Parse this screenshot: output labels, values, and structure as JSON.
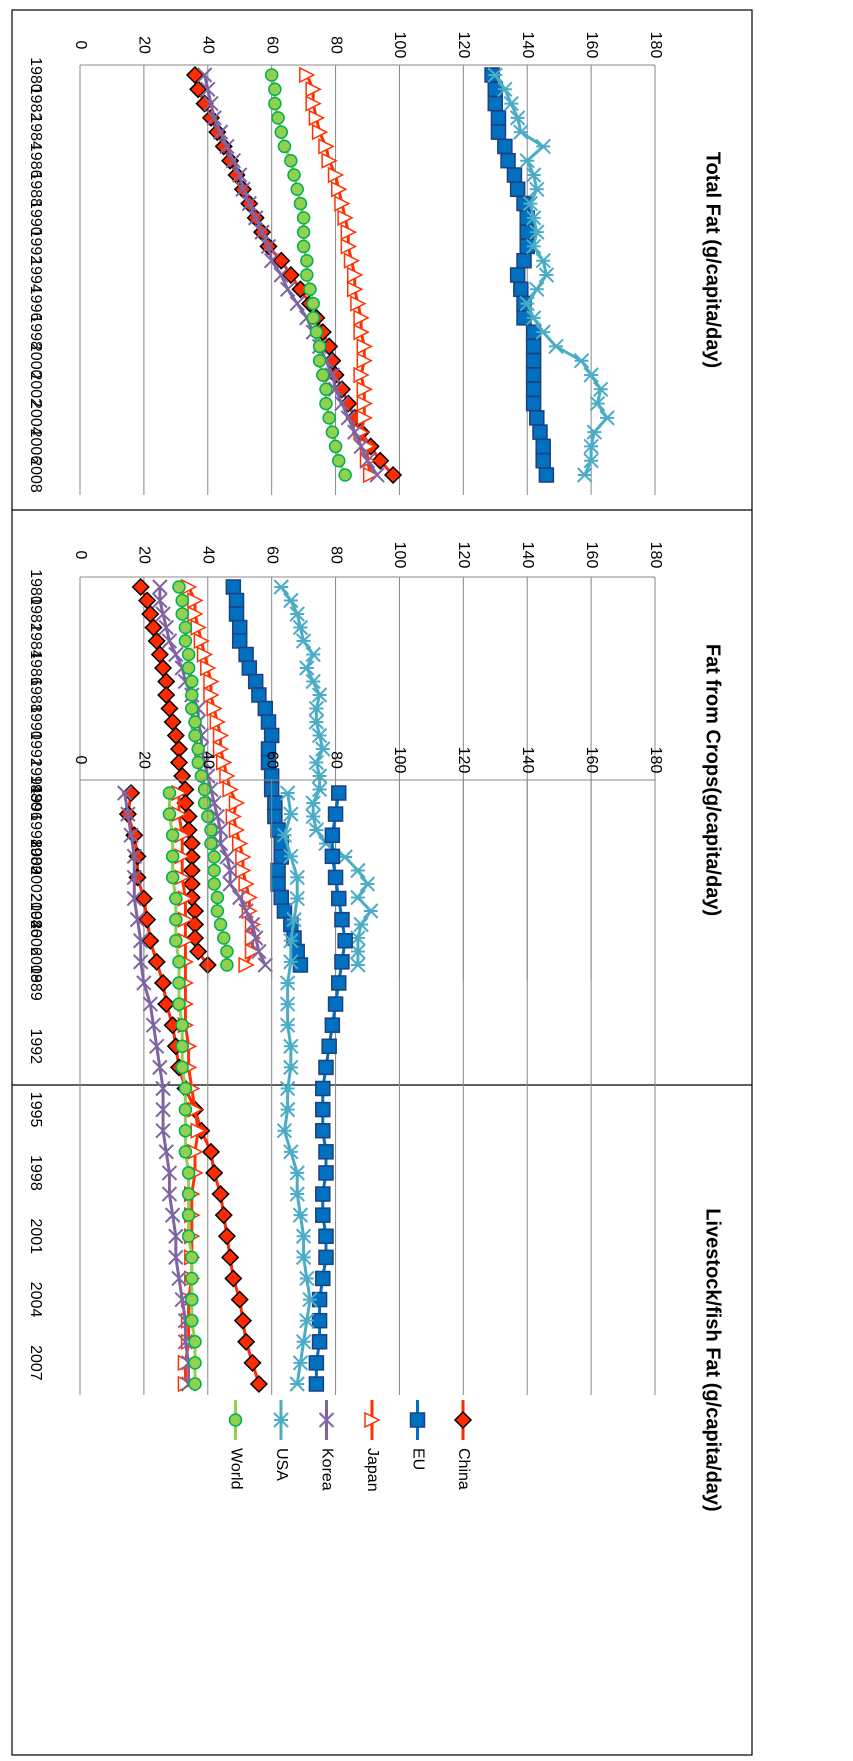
{
  "chart_data": [
    {
      "type": "line",
      "title": "Total Fat (g/capita/day)",
      "categories": [
        "1980",
        null,
        "1982",
        null,
        "1984",
        null,
        "1986",
        null,
        "1988",
        null,
        "1990",
        null,
        "1992",
        null,
        "1994",
        null,
        "1996",
        null,
        "1998",
        null,
        "2000",
        null,
        "2002",
        null,
        "2004",
        null,
        "2006",
        null,
        "2008"
      ],
      "ylim": [
        0,
        180
      ],
      "yticks": [
        0,
        20,
        40,
        60,
        80,
        100,
        120,
        140,
        160,
        180
      ],
      "grid": true,
      "legend": false,
      "series": [
        {
          "color": "#ff2a00",
          "edge_color": "#000000",
          "marker": "diamond",
          "values": [
            36,
            37,
            39,
            41,
            43,
            45,
            47,
            49,
            51,
            53,
            55,
            57,
            59,
            63,
            66,
            69,
            72,
            74,
            76,
            78,
            79,
            80,
            82,
            84,
            86,
            88,
            91,
            94,
            98
          ]
        },
        {
          "color": "#0070c0",
          "edge_color": "#1f3f7f",
          "marker": "square",
          "values": [
            129,
            130,
            130,
            131,
            131,
            133,
            134,
            136,
            137,
            139,
            140,
            140,
            140,
            139,
            137,
            138,
            139,
            139,
            142,
            142,
            142,
            142,
            142,
            142,
            143,
            144,
            145,
            145,
            146
          ]
        },
        {
          "color": "#ff3300",
          "edge_color": "#ff3300",
          "marker": "triangle",
          "values": [
            71,
            73,
            73,
            74,
            75,
            77,
            78,
            80,
            81,
            82,
            83,
            84,
            84,
            85,
            86,
            86,
            87,
            88,
            88,
            89,
            89,
            88,
            89,
            89,
            89,
            88,
            90,
            90,
            91
          ]
        },
        {
          "color": "#8064a2",
          "edge_color": "#8064a2",
          "marker": "x",
          "values": [
            39,
            40,
            41,
            42,
            44,
            46,
            48,
            50,
            51,
            53,
            55,
            57,
            59,
            60,
            63,
            65,
            68,
            71,
            73,
            75,
            77,
            79,
            80,
            82,
            84,
            86,
            88,
            90,
            93
          ]
        },
        {
          "color": "#4bacc6",
          "edge_color": "#4bacc6",
          "marker": "star",
          "values": [
            130,
            133,
            135,
            137,
            138,
            145,
            140,
            142,
            143,
            141,
            142,
            143,
            142,
            145,
            146,
            143,
            140,
            142,
            145,
            149,
            157,
            160,
            163,
            162,
            165,
            161,
            160,
            160,
            158
          ]
        },
        {
          "color": "#92d050",
          "edge_color": "#00b050",
          "marker": "circle",
          "values": [
            60,
            61,
            61,
            62,
            63,
            64,
            66,
            67,
            68,
            69,
            70,
            70,
            70,
            71,
            71,
            72,
            73,
            73,
            74,
            75,
            75,
            76,
            77,
            77,
            78,
            79,
            80,
            81,
            83
          ]
        }
      ]
    },
    {
      "type": "line",
      "title": "Fat from Crops(g/capita/day)",
      "categories": [
        "1980",
        null,
        "1982",
        null,
        "1984",
        null,
        "1986",
        null,
        "1988",
        null,
        "1990",
        null,
        "1992",
        null,
        "1994",
        null,
        "1996",
        null,
        "1998",
        null,
        "2000",
        null,
        "2002",
        null,
        "2004",
        null,
        "2006",
        null,
        "2008"
      ],
      "ylim": [
        0,
        180
      ],
      "yticks": [
        0,
        20,
        40,
        60,
        80,
        100,
        120,
        140,
        160,
        180
      ],
      "grid": true,
      "legend": false,
      "series": [
        {
          "color": "#ff2a00",
          "edge_color": "#000000",
          "marker": "diamond",
          "values": [
            19,
            21,
            22,
            23,
            24,
            25,
            26,
            27,
            27,
            28,
            29,
            30,
            31,
            31,
            32,
            33,
            33,
            34,
            34,
            35,
            35,
            35,
            35,
            35,
            36,
            36,
            36,
            37,
            40
          ]
        },
        {
          "color": "#0070c0",
          "edge_color": "#1f3f7f",
          "marker": "square",
          "values": [
            48,
            49,
            49,
            50,
            50,
            52,
            53,
            55,
            56,
            58,
            59,
            60,
            59,
            59,
            60,
            60,
            61,
            61,
            62,
            63,
            63,
            62,
            62,
            63,
            64,
            66,
            67,
            68,
            69
          ]
        },
        {
          "color": "#ff3300",
          "edge_color": "#ff3300",
          "marker": "triangle",
          "values": [
            34,
            36,
            36,
            37,
            38,
            39,
            40,
            41,
            41,
            42,
            43,
            44,
            44,
            45,
            46,
            47,
            49,
            48,
            49,
            50,
            51,
            51,
            52,
            53,
            53,
            54,
            54,
            54,
            52
          ]
        },
        {
          "color": "#8064a2",
          "edge_color": "#8064a2",
          "marker": "x",
          "values": [
            25,
            25,
            26,
            27,
            28,
            30,
            32,
            33,
            35,
            37,
            37,
            38,
            38,
            39,
            40,
            41,
            42,
            43,
            44,
            44,
            46,
            47,
            47,
            50,
            52,
            54,
            55,
            56,
            58
          ]
        },
        {
          "color": "#4bacc6",
          "edge_color": "#4bacc6",
          "marker": "star",
          "values": [
            63,
            66,
            68,
            69,
            70,
            73,
            71,
            73,
            75,
            74,
            74,
            75,
            76,
            74,
            75,
            75,
            73,
            73,
            74,
            77,
            83,
            87,
            90,
            87,
            91,
            88,
            87,
            87,
            87
          ]
        },
        {
          "color": "#92d050",
          "edge_color": "#00b050",
          "marker": "circle",
          "values": [
            31,
            32,
            32,
            33,
            33,
            34,
            34,
            35,
            35,
            35,
            36,
            36,
            37,
            37,
            38,
            39,
            39,
            40,
            41,
            41,
            42,
            42,
            42,
            43,
            43,
            44,
            45,
            46,
            46
          ]
        }
      ]
    },
    {
      "type": "line",
      "title": "Livestock/fish Fat (g/capita/day)",
      "categories": [
        "1980",
        null,
        null,
        "1983",
        null,
        null,
        "1986",
        null,
        null,
        "1989",
        null,
        null,
        "1992",
        null,
        null,
        "1995",
        null,
        null,
        "1998",
        null,
        null,
        "2001",
        null,
        null,
        "2004",
        null,
        null,
        "2007",
        null
      ],
      "ylim": [
        0,
        180
      ],
      "yticks": [
        0,
        20,
        40,
        60,
        80,
        100,
        120,
        140,
        160,
        180
      ],
      "grid": true,
      "legend": true,
      "series": [
        {
          "name": "China",
          "color": "#ff2a00",
          "edge_color": "#000000",
          "marker": "diamond",
          "values": [
            16,
            15,
            17,
            18,
            18,
            20,
            21,
            22,
            24,
            26,
            27,
            29,
            30,
            31,
            33,
            36,
            38,
            41,
            42,
            44,
            45,
            46,
            47,
            48,
            50,
            51,
            52,
            54,
            56
          ]
        },
        {
          "name": "EU",
          "color": "#0070c0",
          "edge_color": "#1f3f7f",
          "marker": "square",
          "values": [
            81,
            80,
            79,
            79,
            80,
            81,
            82,
            83,
            82,
            81,
            80,
            79,
            78,
            77,
            76,
            76,
            76,
            77,
            77,
            76,
            76,
            77,
            77,
            76,
            75,
            75,
            75,
            74,
            74
          ]
        },
        {
          "name": "Japan",
          "color": "#ff3300",
          "edge_color": "#ff3300",
          "marker": "triangle",
          "values": [
            31,
            31,
            32,
            32,
            32,
            33,
            33,
            33,
            33,
            33,
            33,
            33,
            34,
            34,
            35,
            36,
            37,
            36,
            36,
            35,
            35,
            35,
            35,
            35,
            34,
            34,
            34,
            33,
            33
          ]
        },
        {
          "name": "Korea",
          "color": "#8064a2",
          "edge_color": "#8064a2",
          "marker": "x",
          "values": [
            14,
            15,
            16,
            17,
            17,
            17,
            18,
            19,
            19,
            20,
            22,
            23,
            24,
            25,
            26,
            26,
            26,
            27,
            28,
            28,
            29,
            30,
            30,
            31,
            32,
            33,
            33,
            34,
            34
          ]
        },
        {
          "name": "USA",
          "color": "#4bacc6",
          "edge_color": "#4bacc6",
          "marker": "star",
          "values": [
            65,
            66,
            64,
            66,
            68,
            68,
            67,
            66,
            66,
            65,
            65,
            65,
            66,
            66,
            65,
            65,
            64,
            66,
            68,
            68,
            69,
            70,
            70,
            71,
            72,
            71,
            70,
            69,
            68
          ]
        },
        {
          "name": "World",
          "color": "#92d050",
          "edge_color": "#00b050",
          "marker": "circle",
          "values": [
            28,
            28,
            29,
            29,
            29,
            30,
            30,
            30,
            31,
            31,
            31,
            32,
            32,
            32,
            33,
            33,
            33,
            33,
            34,
            34,
            34,
            34,
            35,
            35,
            35,
            35,
            36,
            36,
            36
          ]
        }
      ]
    }
  ]
}
